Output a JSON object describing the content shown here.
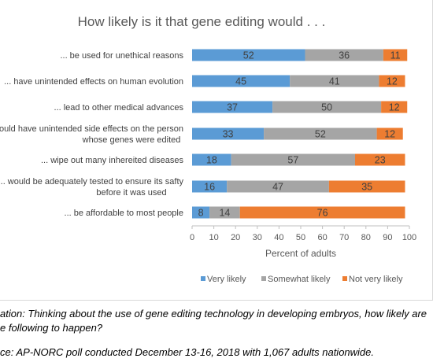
{
  "chart_data": {
    "type": "bar",
    "stacked": true,
    "orientation": "horizontal",
    "title": "How likely is it that gene editing would . . .",
    "xlabel": "Percent of adults",
    "ylabel": "",
    "xlim": [
      0,
      100
    ],
    "xticks": [
      0,
      10,
      20,
      30,
      40,
      50,
      60,
      70,
      80,
      90,
      100
    ],
    "grid": false,
    "legend_position": "bottom",
    "categories": [
      [
        "... be used for unethical reasons"
      ],
      [
        "... have unintended effects on human evolution"
      ],
      [
        "... lead to other medical advances"
      ],
      [
        "ould have unintended side effects on the person",
        "whose genes were edited"
      ],
      [
        "... wipe out many inhereited diseases"
      ],
      [
        "... would be adequately tested to ensure its safty",
        "before it was used"
      ],
      [
        "... be affordable to most people"
      ]
    ],
    "series": [
      {
        "name": "Very likely",
        "color": "#5b9bd5",
        "values": [
          52,
          45,
          37,
          33,
          18,
          16,
          8
        ]
      },
      {
        "name": "Somewhat likely",
        "color": "#a5a5a5",
        "values": [
          36,
          41,
          50,
          52,
          57,
          47,
          14
        ]
      },
      {
        "name": "Not very likely",
        "color": "#ed7d31",
        "values": [
          11,
          12,
          12,
          12,
          23,
          35,
          76
        ]
      }
    ]
  },
  "notes": {
    "question_line1": "ation: Thinking about the use of gene editing technology in developing embryos, how likely are",
    "question_line2": "e following to happen?",
    "source": "ce: AP-NORC poll conducted December 13-16, 2018 with 1,067 adults nationwide."
  }
}
